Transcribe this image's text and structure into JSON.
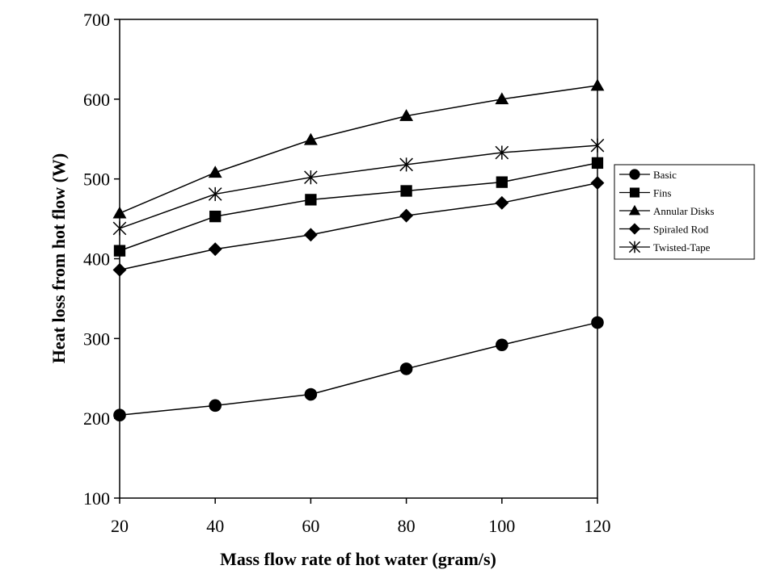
{
  "chart_data": {
    "type": "line",
    "xlabel": "Mass flow rate of hot water (gram/s)",
    "ylabel": "Heat loss from hot flow (W)",
    "x": [
      20,
      40,
      60,
      80,
      100,
      120
    ],
    "xlim": [
      20,
      120
    ],
    "ylim": [
      100,
      700
    ],
    "xticks": [
      "20",
      "40",
      "60",
      "80",
      "100",
      "120"
    ],
    "yticks": [
      "100",
      "200",
      "300",
      "400",
      "500",
      "600",
      "700"
    ],
    "grid": false,
    "legend_position": "right",
    "series": [
      {
        "name": "Basic",
        "marker": "circle",
        "values": [
          204,
          216,
          230,
          262,
          292,
          320
        ]
      },
      {
        "name": "Fins",
        "marker": "square",
        "values": [
          410,
          453,
          474,
          485,
          496,
          520
        ]
      },
      {
        "name": "Annular Disks",
        "marker": "triangle",
        "values": [
          457,
          508,
          549,
          579,
          600,
          617
        ]
      },
      {
        "name": "Spiraled Rod",
        "marker": "diamond",
        "values": [
          386,
          412,
          430,
          454,
          470,
          495
        ]
      },
      {
        "name": "Twisted-Tape",
        "marker": "asterisk",
        "values": [
          438,
          481,
          502,
          518,
          533,
          542
        ]
      }
    ]
  }
}
